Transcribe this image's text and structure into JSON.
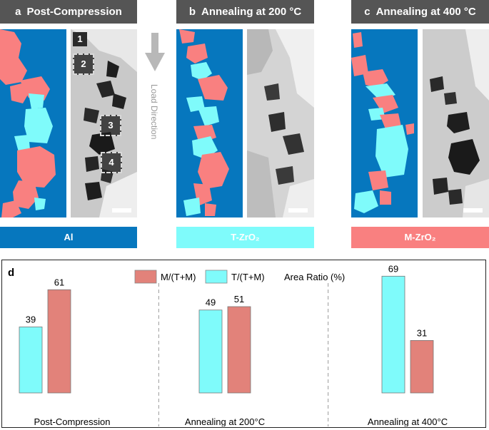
{
  "panels": [
    {
      "letter": "a",
      "title": "Post-Compression"
    },
    {
      "letter": "b",
      "title": "Annealing at 200 °C"
    },
    {
      "letter": "c",
      "title": "Annealing at 400 °C"
    }
  ],
  "markers": [
    "1",
    "2",
    "3",
    "4"
  ],
  "load_direction": "Load Direction",
  "phase_legend": [
    {
      "label": "Al",
      "color": "#0677BE"
    },
    {
      "label": "T-ZrO₂",
      "color": "#7FFBFB"
    },
    {
      "label": "M-ZrO₂",
      "color": "#F98080"
    }
  ],
  "chart_data": {
    "type": "bar",
    "panel_label": "d",
    "categories": [
      "Post-Compression",
      "Annealing at 200°C",
      "Annealing at 400°C"
    ],
    "series": [
      {
        "name": "T/(T+M)",
        "color": "#7FFBFB",
        "values": [
          39,
          49,
          69
        ]
      },
      {
        "name": "M/(T+M)",
        "color": "#E2827A",
        "values": [
          61,
          51,
          31
        ]
      }
    ],
    "series_order": [
      [
        "T/(T+M)",
        "M/(T+M)"
      ],
      [
        "T/(T+M)",
        "M/(T+M)"
      ],
      [
        "T/(T+M)",
        "M/(T+M)"
      ]
    ],
    "legend_label": "Area Ratio (%)",
    "ylim": [
      0,
      80
    ]
  }
}
